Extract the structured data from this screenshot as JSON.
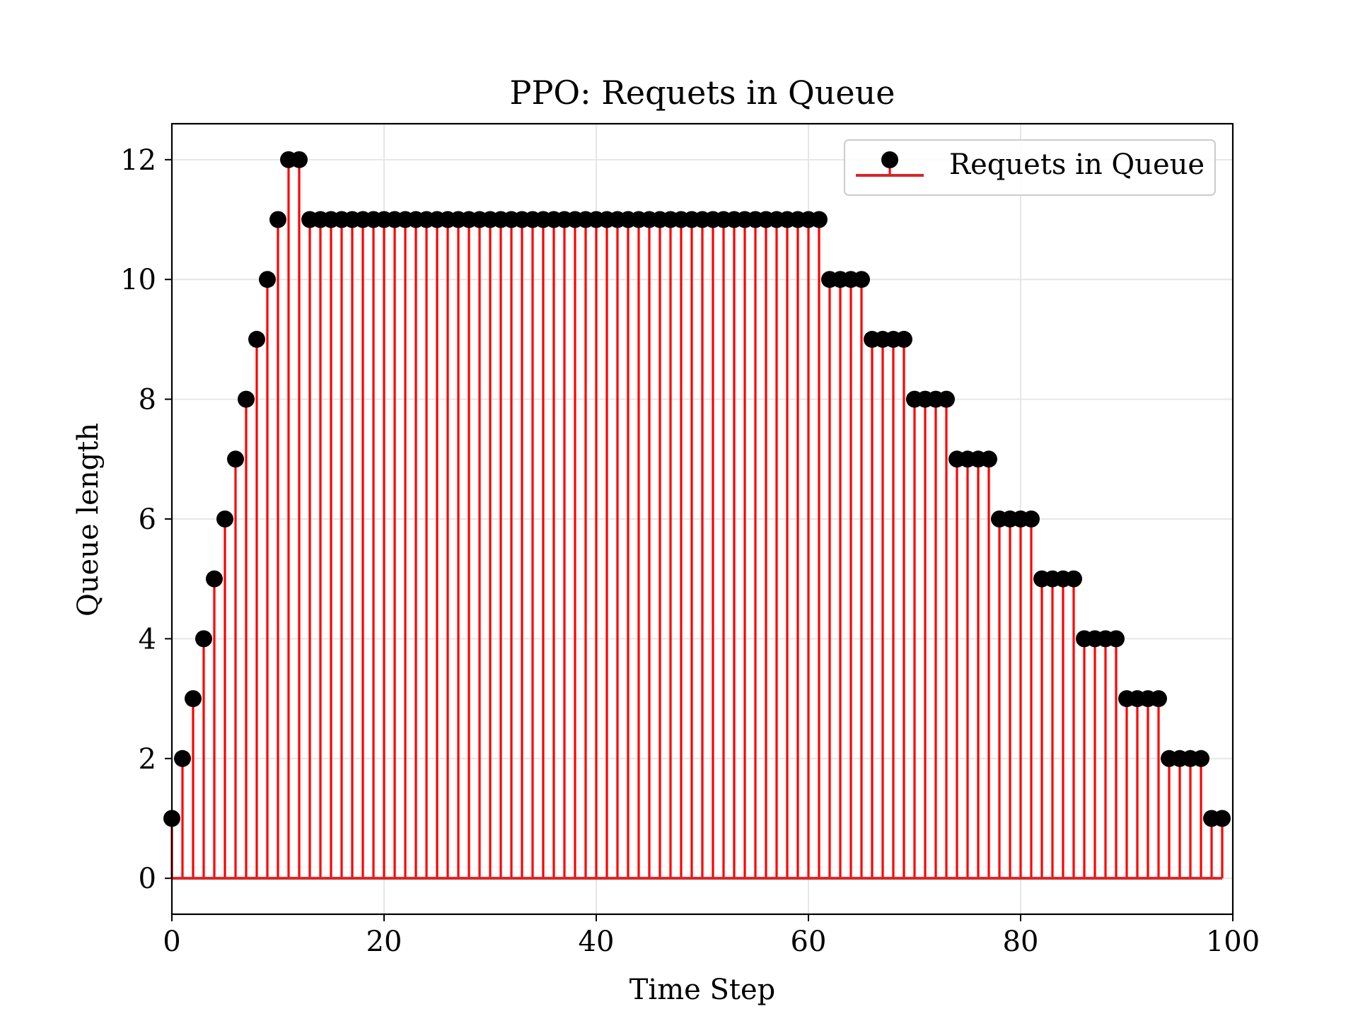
{
  "chart_data": {
    "type": "stem",
    "title": "PPO: Requets in Queue",
    "xlabel": "Time Step",
    "ylabel": "Queue length",
    "xlim": [
      0,
      100
    ],
    "ylim": [
      -0.6,
      12.6
    ],
    "xticks": [
      0,
      20,
      40,
      60,
      80,
      100
    ],
    "yticks": [
      0,
      2,
      4,
      6,
      8,
      10,
      12
    ],
    "grid": true,
    "legend": {
      "placement": "top-right",
      "entries": [
        "Requets in Queue"
      ]
    },
    "series": [
      {
        "name": "Requets in Queue",
        "stem_color": "#ff0000",
        "marker_color": "#000000",
        "baseline_color": "#d62728",
        "x": [
          0,
          1,
          2,
          3,
          4,
          5,
          6,
          7,
          8,
          9,
          10,
          11,
          12,
          13,
          14,
          15,
          16,
          17,
          18,
          19,
          20,
          21,
          22,
          23,
          24,
          25,
          26,
          27,
          28,
          29,
          30,
          31,
          32,
          33,
          34,
          35,
          36,
          37,
          38,
          39,
          40,
          41,
          42,
          43,
          44,
          45,
          46,
          47,
          48,
          49,
          50,
          51,
          52,
          53,
          54,
          55,
          56,
          57,
          58,
          59,
          60,
          61,
          62,
          63,
          64,
          65,
          66,
          67,
          68,
          69,
          70,
          71,
          72,
          73,
          74,
          75,
          76,
          77,
          78,
          79,
          80,
          81,
          82,
          83,
          84,
          85,
          86,
          87,
          88,
          89,
          90,
          91,
          92,
          93,
          94,
          95,
          96,
          97,
          98,
          99
        ],
        "values": [
          1,
          2,
          3,
          4,
          5,
          6,
          7,
          8,
          9,
          10,
          11,
          12,
          12,
          11,
          11,
          11,
          11,
          11,
          11,
          11,
          11,
          11,
          11,
          11,
          11,
          11,
          11,
          11,
          11,
          11,
          11,
          11,
          11,
          11,
          11,
          11,
          11,
          11,
          11,
          11,
          11,
          11,
          11,
          11,
          11,
          11,
          11,
          11,
          11,
          11,
          11,
          11,
          11,
          11,
          11,
          11,
          11,
          11,
          11,
          11,
          11,
          11,
          10,
          10,
          10,
          10,
          9,
          9,
          9,
          9,
          8,
          8,
          8,
          8,
          7,
          7,
          7,
          7,
          6,
          6,
          6,
          6,
          5,
          5,
          5,
          5,
          4,
          4,
          4,
          4,
          3,
          3,
          3,
          3,
          2,
          2,
          2,
          2,
          1,
          1
        ]
      }
    ]
  }
}
